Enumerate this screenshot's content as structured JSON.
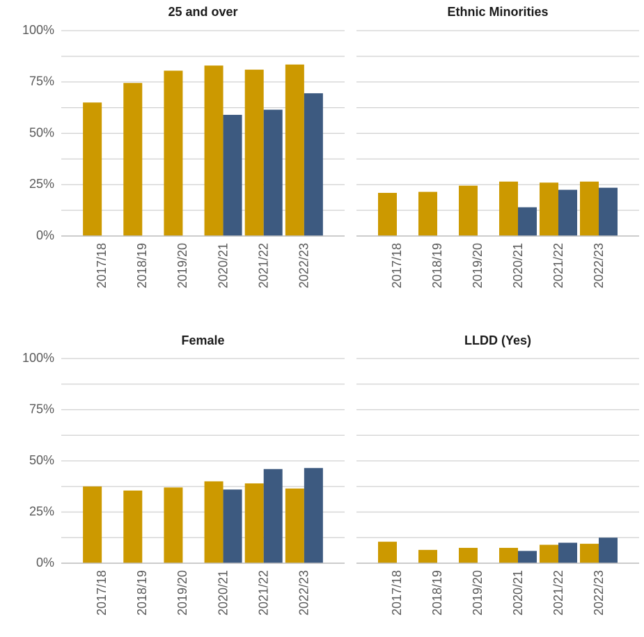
{
  "chart_data": [
    {
      "type": "bar",
      "title": "25 and over",
      "categories": [
        "2017/18",
        "2018/19",
        "2019/20",
        "2020/21",
        "2021/22",
        "2022/23"
      ],
      "series": [
        {
          "color": "#cc9900",
          "values": [
            65,
            74.5,
            80.5,
            83,
            81,
            83.5
          ]
        },
        {
          "color": "#3d5a80",
          "values": [
            null,
            null,
            null,
            59,
            61.5,
            69.5
          ]
        }
      ],
      "ylim": [
        0,
        100
      ],
      "yticks": [
        {
          "value": 0,
          "label": "0%"
        },
        {
          "value": 25,
          "label": "25%"
        },
        {
          "value": 50,
          "label": "50%"
        },
        {
          "value": 75,
          "label": "75%"
        },
        {
          "value": 100,
          "label": "100%"
        }
      ],
      "grid": true
    },
    {
      "type": "bar",
      "title": "Ethnic Minorities",
      "categories": [
        "2017/18",
        "2018/19",
        "2019/20",
        "2020/21",
        "2021/22",
        "2022/23"
      ],
      "series": [
        {
          "color": "#cc9900",
          "values": [
            21,
            21.5,
            24.5,
            26.5,
            26,
            26.5
          ]
        },
        {
          "color": "#3d5a80",
          "values": [
            null,
            null,
            null,
            14,
            22.5,
            23.5
          ]
        }
      ],
      "ylim": [
        0,
        100
      ],
      "yticks": [
        0,
        25,
        50,
        75,
        100
      ],
      "grid": true
    },
    {
      "type": "bar",
      "title": "Female",
      "categories": [
        "2017/18",
        "2018/19",
        "2019/20",
        "2020/21",
        "2021/22",
        "2022/23"
      ],
      "series": [
        {
          "color": "#cc9900",
          "values": [
            37.5,
            35.5,
            37,
            40,
            39,
            36.5
          ]
        },
        {
          "color": "#3d5a80",
          "values": [
            null,
            null,
            null,
            36,
            46,
            46.5
          ]
        }
      ],
      "ylim": [
        0,
        100
      ],
      "yticks": [
        {
          "value": 0,
          "label": "0%"
        },
        {
          "value": 25,
          "label": "25%"
        },
        {
          "value": 50,
          "label": "50%"
        },
        {
          "value": 75,
          "label": "75%"
        },
        {
          "value": 100,
          "label": "100%"
        }
      ],
      "grid": true
    },
    {
      "type": "bar",
      "title": "LLDD (Yes)",
      "categories": [
        "2017/18",
        "2018/19",
        "2019/20",
        "2020/21",
        "2021/22",
        "2022/23"
      ],
      "series": [
        {
          "color": "#cc9900",
          "values": [
            10.5,
            6.5,
            7.5,
            7.5,
            9,
            9.5
          ]
        },
        {
          "color": "#3d5a80",
          "values": [
            null,
            null,
            null,
            6,
            10,
            12.5
          ]
        }
      ],
      "ylim": [
        0,
        100
      ],
      "yticks": [
        0,
        25,
        50,
        75,
        100
      ],
      "grid": true
    }
  ]
}
